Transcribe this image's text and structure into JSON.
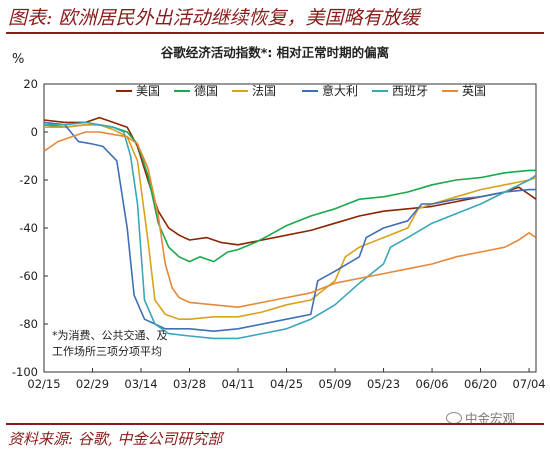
{
  "header": {
    "title": "图表: 欧洲居民外出活动继续恢复，美国略有放缓"
  },
  "footer": {
    "source": "资料来源: 谷歌, 中金公司研究部",
    "watermark": "中金宏观"
  },
  "colors": {
    "brand": "#8b1a1a"
  },
  "chart_data": {
    "type": "line",
    "title": "谷歌经济活动指数*: 相对正常时期的偏离",
    "ylabel": "%",
    "ylim": [
      -100,
      20
    ],
    "yticks": [
      20,
      0,
      -20,
      -40,
      -60,
      -80,
      -100
    ],
    "xlim": [
      "2020-02-15",
      "2020-07-06"
    ],
    "xticks": [
      "2020-02-15",
      "2020-02-29",
      "2020-03-14",
      "2020-03-28",
      "2020-04-11",
      "2020-04-25",
      "2020-05-09",
      "2020-05-23",
      "2020-06-06",
      "2020-06-20",
      "2020-07-04"
    ],
    "xtick_labels": [
      "02/15",
      "02/29",
      "03/14",
      "03/28",
      "04/11",
      "04/25",
      "05/09",
      "05/23",
      "06/06",
      "06/20",
      "07/04"
    ],
    "grid": false,
    "legend_position": "top",
    "annotation": [
      "*为消费、公共交通、及",
      "工作场所三项分项平均"
    ],
    "series": [
      {
        "name": "美国",
        "color": "#8b2500",
        "points": [
          [
            "2020-02-15",
            5
          ],
          [
            "2020-02-21",
            4
          ],
          [
            "2020-02-27",
            4
          ],
          [
            "2020-03-02",
            6
          ],
          [
            "2020-03-06",
            4
          ],
          [
            "2020-03-10",
            2
          ],
          [
            "2020-03-13",
            -6
          ],
          [
            "2020-03-16",
            -20
          ],
          [
            "2020-03-19",
            -33
          ],
          [
            "2020-03-22",
            -40
          ],
          [
            "2020-03-25",
            -43
          ],
          [
            "2020-03-28",
            -45
          ],
          [
            "2020-04-02",
            -44
          ],
          [
            "2020-04-06",
            -46
          ],
          [
            "2020-04-11",
            -47
          ],
          [
            "2020-04-18",
            -45
          ],
          [
            "2020-04-25",
            -43
          ],
          [
            "2020-05-02",
            -41
          ],
          [
            "2020-05-09",
            -38
          ],
          [
            "2020-05-16",
            -35
          ],
          [
            "2020-05-23",
            -33
          ],
          [
            "2020-05-30",
            -32
          ],
          [
            "2020-06-06",
            -31
          ],
          [
            "2020-06-13",
            -29
          ],
          [
            "2020-06-20",
            -27
          ],
          [
            "2020-06-27",
            -25
          ],
          [
            "2020-07-01",
            -23
          ],
          [
            "2020-07-04",
            -26
          ],
          [
            "2020-07-06",
            -28
          ]
        ]
      },
      {
        "name": "德国",
        "color": "#1aa84a",
        "points": [
          [
            "2020-02-15",
            3
          ],
          [
            "2020-02-21",
            2
          ],
          [
            "2020-02-27",
            3
          ],
          [
            "2020-03-02",
            3
          ],
          [
            "2020-03-06",
            2
          ],
          [
            "2020-03-10",
            0
          ],
          [
            "2020-03-13",
            -5
          ],
          [
            "2020-03-16",
            -18
          ],
          [
            "2020-03-19",
            -38
          ],
          [
            "2020-03-22",
            -48
          ],
          [
            "2020-03-25",
            -52
          ],
          [
            "2020-03-28",
            -54
          ],
          [
            "2020-03-31",
            -52
          ],
          [
            "2020-04-04",
            -54
          ],
          [
            "2020-04-08",
            -50
          ],
          [
            "2020-04-11",
            -49
          ],
          [
            "2020-04-16",
            -46
          ],
          [
            "2020-04-20",
            -43
          ],
          [
            "2020-04-25",
            -39
          ],
          [
            "2020-05-02",
            -35
          ],
          [
            "2020-05-09",
            -32
          ],
          [
            "2020-05-16",
            -28
          ],
          [
            "2020-05-23",
            -27
          ],
          [
            "2020-05-30",
            -25
          ],
          [
            "2020-06-06",
            -22
          ],
          [
            "2020-06-13",
            -20
          ],
          [
            "2020-06-20",
            -19
          ],
          [
            "2020-06-27",
            -17
          ],
          [
            "2020-07-04",
            -16
          ],
          [
            "2020-07-06",
            -16
          ]
        ]
      },
      {
        "name": "法国",
        "color": "#d9a21b",
        "points": [
          [
            "2020-02-15",
            2
          ],
          [
            "2020-02-21",
            2
          ],
          [
            "2020-02-27",
            3
          ],
          [
            "2020-03-02",
            3
          ],
          [
            "2020-03-06",
            1
          ],
          [
            "2020-03-10",
            -2
          ],
          [
            "2020-03-13",
            -12
          ],
          [
            "2020-03-16",
            -45
          ],
          [
            "2020-03-18",
            -70
          ],
          [
            "2020-03-21",
            -76
          ],
          [
            "2020-03-25",
            -78
          ],
          [
            "2020-03-28",
            -78
          ],
          [
            "2020-04-04",
            -77
          ],
          [
            "2020-04-11",
            -77
          ],
          [
            "2020-04-18",
            -75
          ],
          [
            "2020-04-25",
            -72
          ],
          [
            "2020-05-02",
            -70
          ],
          [
            "2020-05-09",
            -62
          ],
          [
            "2020-05-12",
            -52
          ],
          [
            "2020-05-16",
            -48
          ],
          [
            "2020-05-23",
            -44
          ],
          [
            "2020-05-30",
            -40
          ],
          [
            "2020-06-02",
            -32
          ],
          [
            "2020-06-06",
            -30
          ],
          [
            "2020-06-13",
            -27
          ],
          [
            "2020-06-20",
            -24
          ],
          [
            "2020-06-27",
            -22
          ],
          [
            "2020-07-04",
            -20
          ],
          [
            "2020-07-06",
            -19
          ]
        ]
      },
      {
        "name": "意大利",
        "color": "#3f6fb6",
        "points": [
          [
            "2020-02-15",
            4
          ],
          [
            "2020-02-21",
            3
          ],
          [
            "2020-02-25",
            -4
          ],
          [
            "2020-02-29",
            -5
          ],
          [
            "2020-03-03",
            -6
          ],
          [
            "2020-03-07",
            -12
          ],
          [
            "2020-03-10",
            -40
          ],
          [
            "2020-03-12",
            -68
          ],
          [
            "2020-03-15",
            -78
          ],
          [
            "2020-03-18",
            -80
          ],
          [
            "2020-03-21",
            -82
          ],
          [
            "2020-03-28",
            -82
          ],
          [
            "2020-04-04",
            -83
          ],
          [
            "2020-04-11",
            -82
          ],
          [
            "2020-04-18",
            -80
          ],
          [
            "2020-04-25",
            -78
          ],
          [
            "2020-05-02",
            -76
          ],
          [
            "2020-05-04",
            -62
          ],
          [
            "2020-05-09",
            -58
          ],
          [
            "2020-05-16",
            -52
          ],
          [
            "2020-05-18",
            -44
          ],
          [
            "2020-05-23",
            -40
          ],
          [
            "2020-05-30",
            -37
          ],
          [
            "2020-06-03",
            -30
          ],
          [
            "2020-06-06",
            -30
          ],
          [
            "2020-06-13",
            -28
          ],
          [
            "2020-06-20",
            -27
          ],
          [
            "2020-06-27",
            -25
          ],
          [
            "2020-07-04",
            -24
          ],
          [
            "2020-07-06",
            -24
          ]
        ]
      },
      {
        "name": "西班牙",
        "color": "#3aa6b9",
        "points": [
          [
            "2020-02-15",
            3
          ],
          [
            "2020-02-21",
            3
          ],
          [
            "2020-02-27",
            4
          ],
          [
            "2020-03-02",
            3
          ],
          [
            "2020-03-06",
            2
          ],
          [
            "2020-03-09",
            0
          ],
          [
            "2020-03-11",
            -10
          ],
          [
            "2020-03-13",
            -30
          ],
          [
            "2020-03-15",
            -70
          ],
          [
            "2020-03-18",
            -80
          ],
          [
            "2020-03-22",
            -84
          ],
          [
            "2020-03-28",
            -85
          ],
          [
            "2020-04-04",
            -86
          ],
          [
            "2020-04-11",
            -86
          ],
          [
            "2020-04-18",
            -84
          ],
          [
            "2020-04-25",
            -82
          ],
          [
            "2020-05-02",
            -78
          ],
          [
            "2020-05-09",
            -72
          ],
          [
            "2020-05-16",
            -63
          ],
          [
            "2020-05-23",
            -55
          ],
          [
            "2020-05-25",
            -48
          ],
          [
            "2020-05-30",
            -44
          ],
          [
            "2020-06-06",
            -38
          ],
          [
            "2020-06-13",
            -34
          ],
          [
            "2020-06-20",
            -30
          ],
          [
            "2020-06-27",
            -25
          ],
          [
            "2020-07-04",
            -20
          ],
          [
            "2020-07-06",
            -18
          ]
        ]
      },
      {
        "name": "英国",
        "color": "#e8893a",
        "points": [
          [
            "2020-02-15",
            -8
          ],
          [
            "2020-02-19",
            -4
          ],
          [
            "2020-02-23",
            -2
          ],
          [
            "2020-02-27",
            0
          ],
          [
            "2020-03-02",
            0
          ],
          [
            "2020-03-06",
            -1
          ],
          [
            "2020-03-10",
            -2
          ],
          [
            "2020-03-13",
            -5
          ],
          [
            "2020-03-16",
            -15
          ],
          [
            "2020-03-19",
            -35
          ],
          [
            "2020-03-21",
            -55
          ],
          [
            "2020-03-23",
            -65
          ],
          [
            "2020-03-25",
            -69
          ],
          [
            "2020-03-28",
            -71
          ],
          [
            "2020-04-04",
            -72
          ],
          [
            "2020-04-11",
            -73
          ],
          [
            "2020-04-18",
            -71
          ],
          [
            "2020-04-25",
            -69
          ],
          [
            "2020-05-02",
            -67
          ],
          [
            "2020-05-09",
            -63
          ],
          [
            "2020-05-16",
            -61
          ],
          [
            "2020-05-23",
            -59
          ],
          [
            "2020-05-30",
            -57
          ],
          [
            "2020-06-06",
            -55
          ],
          [
            "2020-06-13",
            -52
          ],
          [
            "2020-06-20",
            -50
          ],
          [
            "2020-06-27",
            -48
          ],
          [
            "2020-07-01",
            -45
          ],
          [
            "2020-07-04",
            -42
          ],
          [
            "2020-07-06",
            -44
          ]
        ]
      }
    ]
  }
}
